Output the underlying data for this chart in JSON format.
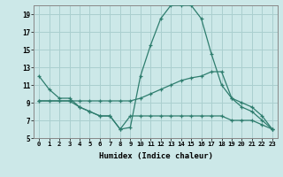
{
  "xlabel": "Humidex (Indice chaleur)",
  "background_color": "#cce8e8",
  "grid_color": "#aacfcf",
  "line_color": "#2e7d6e",
  "xlim": [
    -0.5,
    23.5
  ],
  "ylim": [
    5,
    20
  ],
  "xticks": [
    0,
    1,
    2,
    3,
    4,
    5,
    6,
    7,
    8,
    9,
    10,
    11,
    12,
    13,
    14,
    15,
    16,
    17,
    18,
    19,
    20,
    21,
    22,
    23
  ],
  "yticks": [
    5,
    7,
    9,
    11,
    13,
    15,
    17,
    19
  ],
  "series": [
    {
      "x": [
        0,
        1,
        2,
        3,
        4,
        5,
        6,
        7,
        8,
        9,
        10,
        11,
        12,
        13,
        14,
        15,
        16,
        17,
        18,
        19,
        20,
        21,
        22,
        23
      ],
      "y": [
        12,
        10.5,
        9.5,
        9.5,
        8.5,
        8,
        7.5,
        7.5,
        6,
        6.2,
        12,
        15.5,
        18.5,
        20,
        20,
        20,
        18.5,
        14.5,
        11,
        9.5,
        9,
        8.5,
        7.5,
        6
      ]
    },
    {
      "x": [
        0,
        1,
        2,
        3,
        4,
        5,
        6,
        7,
        8,
        9,
        10,
        11,
        12,
        13,
        14,
        15,
        16,
        17,
        18,
        19,
        20,
        21,
        22,
        23
      ],
      "y": [
        9.2,
        9.2,
        9.2,
        9.2,
        9.2,
        9.2,
        9.2,
        9.2,
        9.2,
        9.2,
        9.5,
        10,
        10.5,
        11,
        11.5,
        11.8,
        12,
        12.5,
        12.5,
        9.5,
        8.5,
        8,
        7,
        6
      ]
    },
    {
      "x": [
        0,
        3,
        4,
        5,
        6,
        7,
        8,
        9,
        10,
        11,
        12,
        13,
        14,
        15,
        16,
        17,
        18,
        19,
        20,
        21,
        22,
        23
      ],
      "y": [
        9.2,
        9.2,
        8.5,
        8,
        7.5,
        7.5,
        6,
        7.5,
        7.5,
        7.5,
        7.5,
        7.5,
        7.5,
        7.5,
        7.5,
        7.5,
        7.5,
        7,
        7,
        7,
        6.5,
        6
      ]
    }
  ]
}
